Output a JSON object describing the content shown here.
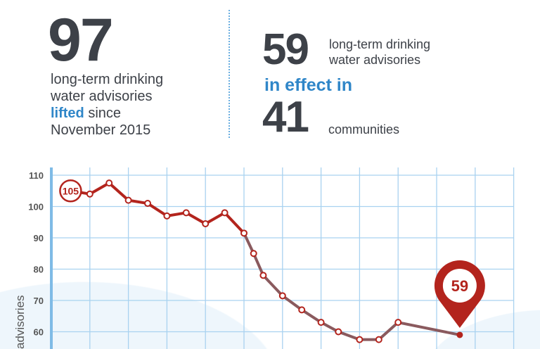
{
  "left_stat": {
    "number": "97",
    "line1": "long-term drinking",
    "line2": "water advisories",
    "highlight": "lifted",
    "line3_rest": " since",
    "line4": "November 2015"
  },
  "right_stat": {
    "number": "59",
    "line1": "long-term drinking",
    "line2": "water advisories",
    "highlight": "in effect in",
    "communities_number": "41",
    "communities_label": "communities"
  },
  "colors": {
    "dark": "#3d4148",
    "blue": "#2f86c8",
    "red": "#b3241d",
    "line": "#8a5a5e",
    "grid": "#a9d2f0"
  },
  "chart_data": {
    "type": "line",
    "title": "",
    "xlabel": "",
    "ylabel": "advisories",
    "ylim": [
      55,
      111
    ],
    "xlim": [
      0,
      12
    ],
    "yticks": [
      60,
      70,
      80,
      90,
      100,
      110
    ],
    "grid": true,
    "series": [
      {
        "name": "long-term drinking water advisories",
        "x": [
          0.5,
          1,
          1.5,
          2,
          2.5,
          3,
          3.5,
          4,
          4.5,
          5,
          5.25,
          5.5,
          6,
          6.5,
          7,
          7.45,
          8,
          8.5,
          9,
          10.6
        ],
        "values": [
          105,
          104,
          107.5,
          102,
          101,
          97,
          98,
          94.5,
          98,
          91.5,
          85,
          78,
          71.5,
          67,
          63,
          60,
          57.5,
          57.5,
          63,
          59
        ]
      }
    ],
    "annotations": [
      {
        "label": "105",
        "point_index": 0,
        "style": "circle"
      },
      {
        "label": "59",
        "point_index": 19,
        "style": "pin"
      }
    ]
  }
}
